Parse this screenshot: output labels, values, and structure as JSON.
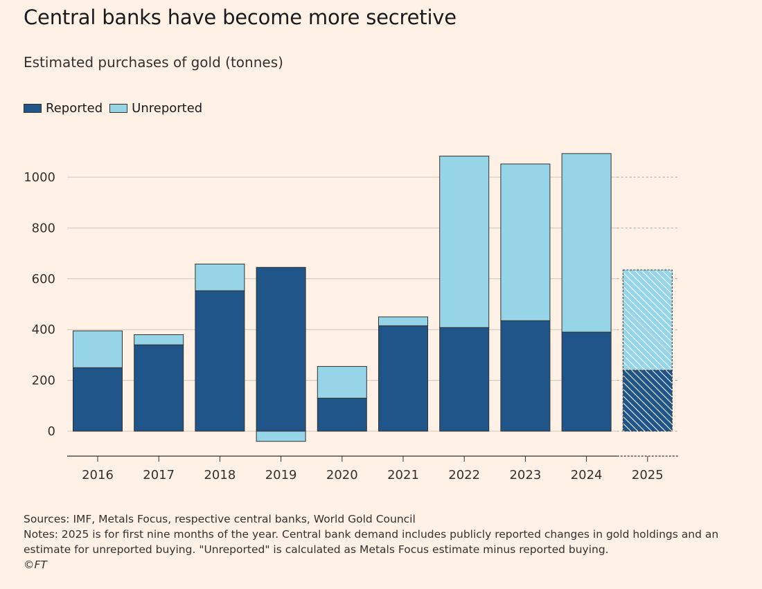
{
  "chart_data": {
    "type": "bar",
    "stacked": true,
    "title": "Central banks have become more secretive",
    "subtitle": "Estimated purchases of gold (tonnes)",
    "categories": [
      "2016",
      "2017",
      "2018",
      "2019",
      "2020",
      "2021",
      "2022",
      "2023",
      "2024",
      "2025"
    ],
    "series": [
      {
        "name": "Reported",
        "color": "#20558A",
        "values": [
          250,
          340,
          553,
          645,
          130,
          415,
          408,
          435,
          390,
          240
        ]
      },
      {
        "name": "Unreported",
        "color": "#96D4E8",
        "values": [
          145,
          40,
          105,
          -40,
          125,
          35,
          675,
          617,
          703,
          395
        ]
      }
    ],
    "estimate_categories": [
      "2025"
    ],
    "yticks": [
      0,
      200,
      400,
      600,
      800,
      1000
    ],
    "ylim": [
      -100,
      1100
    ],
    "xlabel": "",
    "ylabel": "",
    "grid": true,
    "legend": "top-left"
  },
  "footer": {
    "sources": "Sources: IMF, Metals Focus, respective central banks, World Gold Council",
    "notes_line1": "Notes: 2025 is for first nine months of the year. Central bank demand includes publicly reported changes in gold holdings and an",
    "notes_line2": "estimate for unreported buying. \"Unreported\" is calculated as Metals Focus estimate minus reported buying.",
    "copyright": "©FT"
  }
}
